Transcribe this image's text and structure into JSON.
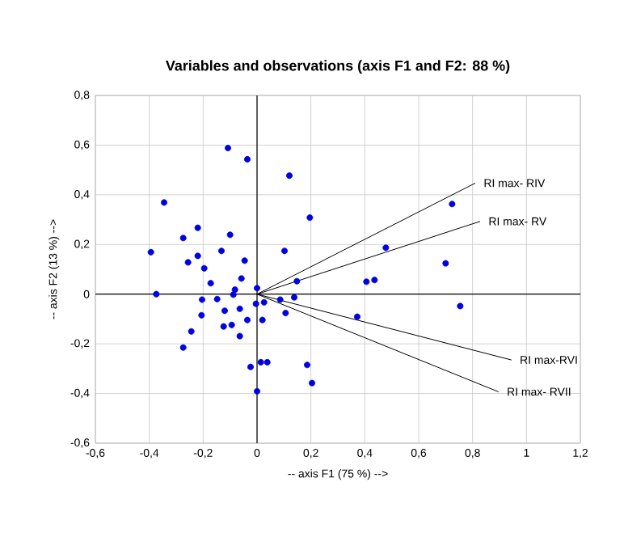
{
  "chart_data": {
    "type": "scatter",
    "title": "Variables and observations (axis F1 and F2: 88 %)",
    "xlabel": "-- axis F1 (75 %) -->",
    "ylabel": "-- axis F2 (13 %) -->",
    "xlim": [
      -0.6,
      1.2
    ],
    "ylim": [
      -0.6,
      0.8
    ],
    "xticks": [
      {
        "value": -0.6,
        "label": "-0,6"
      },
      {
        "value": -0.4,
        "label": "-0,4"
      },
      {
        "value": -0.2,
        "label": "-0,2"
      },
      0,
      {
        "value": 0.2,
        "label": "0,2"
      },
      {
        "value": 0.4,
        "label": "0,4"
      },
      {
        "value": 0.6,
        "label": "0,6"
      },
      {
        "value": 0.8,
        "label": "0,8"
      },
      1,
      {
        "value": 1.2,
        "label": "1,2"
      }
    ],
    "yticks": [
      {
        "value": -0.6,
        "label": "-0,6"
      },
      {
        "value": -0.4,
        "label": "-0,4"
      },
      {
        "value": -0.2,
        "label": "-0,2"
      },
      0,
      {
        "value": 0.2,
        "label": "0,2"
      },
      {
        "value": 0.4,
        "label": "0,4"
      },
      {
        "value": 0.6,
        "label": "0,6"
      },
      {
        "value": 0.8,
        "label": "0,8"
      }
    ],
    "grid": true,
    "series": [
      {
        "type": "scatter",
        "marker": "circle",
        "color": "#0000e0",
        "x": [
          -0.108,
          -0.036,
          0.12,
          -0.345,
          0.196,
          -0.22,
          -0.274,
          -0.1,
          -0.394,
          -0.132,
          0.102,
          -0.22,
          -0.256,
          -0.046,
          -0.196,
          -0.172,
          -0.058,
          0.0,
          -0.082,
          -0.088,
          0.148,
          -0.374,
          -0.204,
          -0.148,
          0.086,
          0.138,
          -0.004,
          0.026,
          -0.12,
          -0.064,
          0.106,
          -0.206,
          -0.036,
          0.02,
          -0.124,
          -0.094,
          -0.244,
          -0.064,
          -0.274,
          -0.024,
          0.014,
          0.038,
          0.186,
          0.204,
          0.0,
          0.724,
          0.478,
          0.7,
          0.406,
          0.436,
          0.754,
          0.372
        ],
        "values": [
          0.588,
          0.543,
          0.477,
          0.369,
          0.308,
          0.267,
          0.226,
          0.239,
          0.169,
          0.174,
          0.174,
          0.154,
          0.128,
          0.135,
          0.104,
          0.044,
          0.063,
          0.024,
          0.018,
          -0.002,
          0.052,
          0.0,
          -0.022,
          -0.02,
          -0.022,
          -0.013,
          -0.039,
          -0.033,
          -0.067,
          -0.059,
          -0.076,
          -0.085,
          -0.104,
          -0.104,
          -0.13,
          -0.124,
          -0.15,
          -0.169,
          -0.215,
          -0.293,
          -0.274,
          -0.274,
          -0.285,
          -0.358,
          -0.391,
          0.363,
          0.187,
          0.124,
          0.05,
          0.057,
          -0.048,
          -0.091
        ]
      },
      {
        "type": "line",
        "marker": "none",
        "name": "RI max- RIV",
        "color": "#000000",
        "x": [
          0,
          0.81
        ],
        "values": [
          0,
          0.447
        ]
      },
      {
        "type": "line",
        "marker": "none",
        "name": "RI max- RV",
        "color": "#000000",
        "x": [
          0,
          0.828
        ],
        "values": [
          0,
          0.293
        ]
      },
      {
        "type": "line",
        "marker": "none",
        "name": "RI max-RVI",
        "color": "#000000",
        "x": [
          0,
          0.944
        ],
        "values": [
          0,
          -0.265
        ]
      },
      {
        "type": "line",
        "marker": "none",
        "name": "RI max- RVII",
        "color": "#000000",
        "x": [
          0,
          0.896
        ],
        "values": [
          0,
          -0.393
        ]
      }
    ]
  }
}
